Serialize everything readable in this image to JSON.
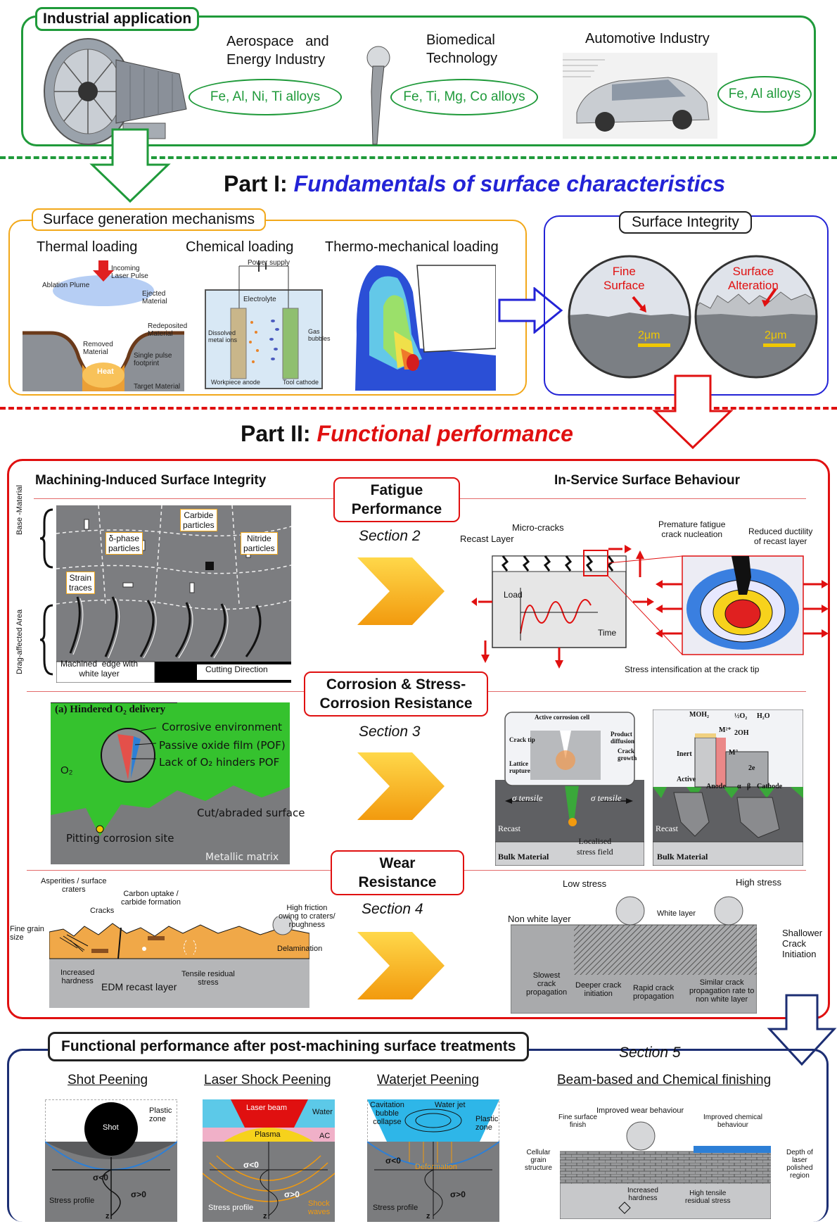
{
  "industrial": {
    "title": "Industrial application",
    "aerospace": "Aerospace   and\nEnergy Industry",
    "aerospace_alloys": "Fe, Al, Ni, Ti alloys",
    "biomedical": "Biomedical\nTechnology",
    "biomedical_alloys": "Fe, Ti, Mg, Co alloys",
    "automotive": "Automotive Industry",
    "automotive_alloys": "Fe, Al alloys"
  },
  "part1": {
    "prefix": "Part I: ",
    "title": "Fundamentals of surface characteristics",
    "sgm_title": "Surface generation mechanisms",
    "thermal": "Thermal loading",
    "chemical": "Chemical loading",
    "thermomech": "Thermo-mechanical loading",
    "thermal_labels": [
      "Incoming\nLaser Pulse",
      "Ablation Plume",
      "Ejected\nMaterial",
      "Redeposited\nMaterial",
      "Removed\nMaterial",
      "Single pulse\nfootprint",
      "Heat",
      "Target Material"
    ],
    "chem_labels": [
      "Power supply",
      "Electrolyte",
      "Dissolved\nmetal ions",
      "Gas\nbubbles",
      "Workpiece anode",
      "Tool cathode"
    ],
    "si_title": "Surface Integrity",
    "fine": "Fine\nSurface",
    "alteration": "Surface\nAlteration",
    "scale1": "2μm",
    "scale2": "2μm"
  },
  "part2": {
    "prefix": "Part II: ",
    "title": "Functional performance",
    "left_header": "Machining-Induced Surface Integrity",
    "right_header": "In-Service Surface Behaviour",
    "fatigue": "Fatigue\nPerformance",
    "section2": "Section 2",
    "corrosion": "Corrosion & Stress-\nCorrosion Resistance",
    "section3": "Section 3",
    "wear": "Wear\nResistance",
    "section4": "Section 4",
    "micro_labels": [
      "Carbide\nparticles",
      "δ-phase\nparticles",
      "Nitride\nparticles",
      "Strain\ntraces",
      "Base -Material",
      "Drag-affected Area",
      "Machined  edge with\nwhite layer",
      "Cutting Direction"
    ],
    "fatigue_labels": [
      "Micro-cracks",
      "Recast Layer",
      "Load",
      "Time",
      "Premature fatigue\ncrack nucleation",
      "Reduced ductility\nof recast layer",
      "Stress intensification at the crack tip"
    ],
    "corr_labels": [
      "(a) Hindered O₂ delivery",
      "Corrosive environment",
      "Passive oxide film (POF)",
      "Lack of O₂ hinders POF",
      "O₂",
      "Cut/abraded surface",
      "Pitting corrosion site",
      "Metallic matrix"
    ],
    "corr_right_labels": [
      "Active corrosion cell",
      "Crack tip",
      "Product\ndiffusion",
      "Crack\ngrowth",
      "Lattice\nrupture",
      "σ tensile",
      "σ tensile",
      "Recast",
      "Localised\nstress field",
      "Bulk Material",
      "MOH₂",
      "½O₂",
      "H₂O",
      "M²⁺",
      "2OH",
      "Inert",
      "M°",
      "2e",
      "Active",
      "Anode",
      "α",
      "β",
      "Cathode",
      "Recast",
      "Bulk Material"
    ],
    "wear_left_labels": [
      "Asperities / surface\ncraters",
      "Carbon uptake /\ncarbide formation",
      "Cracks",
      "High friction\nowing to craters/\nroughness",
      "Fine grain\nsize",
      "Delamination",
      "Increased\nhardness",
      "EDM recast layer",
      "Tensile residual\nstress"
    ],
    "wear_right_labels": [
      "Low stress",
      "High stress",
      "Non white layer",
      "White layer",
      "Shallower\nCrack\nInitiation",
      "Slowest\ncrack\npropagation",
      "Deeper crack\ninitiation",
      "Rapid crack\npropagation",
      "Similar crack\npropagation rate to\nnon white layer"
    ]
  },
  "post": {
    "title": "Functional performance after post-machining surface treatments",
    "section5": "Section 5",
    "shot": "Shot Peening",
    "laser": "Laser Shock Peening",
    "waterjet": "Waterjet Peening",
    "beam": "Beam-based and Chemical finishing",
    "shot_labels": [
      "Shot",
      "Plastic\nzone",
      "σ<0",
      "σ>0",
      "Stress profile",
      "z"
    ],
    "laser_labels": [
      "Laser beam",
      "Water",
      "Plasma",
      "AC",
      "σ<0",
      "σ>0",
      "Stress profile",
      "Shock\nwaves",
      "z"
    ],
    "water_labels": [
      "Cavitation\nbubble\ncollapse",
      "Water jet",
      "Plastic\nzone",
      "Deformation",
      "σ<0",
      "σ>0",
      "Stress profile",
      "z"
    ],
    "beam_labels": [
      "Improved wear behaviour",
      "Fine surface\nfinish",
      "Improved chemical\nbehaviour",
      "Cellular\ngrain\nstructure",
      "Depth of\nlaser\npolished\nregion",
      "Increased\nhardness",
      "High tensile\nresidual stress"
    ]
  }
}
